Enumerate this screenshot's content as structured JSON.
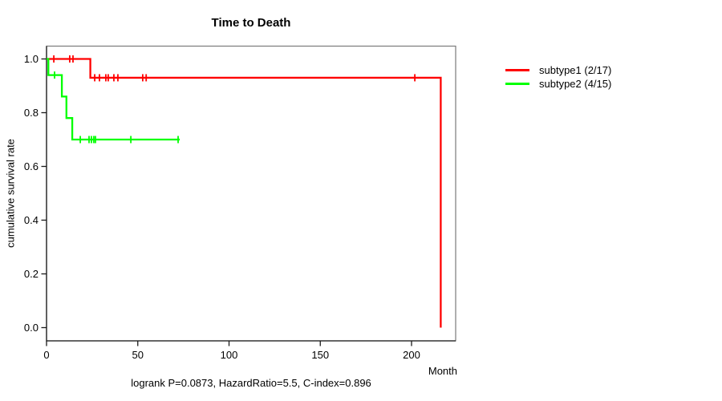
{
  "chart_data": {
    "type": "line",
    "chart_kind": "kaplan_meier_step_survival",
    "title": "Time to Death",
    "xlabel": "Month",
    "ylabel": "cumulative survival rate",
    "footer_annotation": "logrank P=0.0873, HazardRatio=5.5, C-index=0.896",
    "x_ticks": {
      "values": [
        0,
        50,
        100,
        150,
        200
      ],
      "labels": [
        "0",
        "50",
        "100",
        "150",
        "200"
      ]
    },
    "y_ticks": {
      "values": [
        1.0,
        0.8,
        0.6,
        0.4,
        0.2,
        0.0
      ],
      "labels": [
        "1.0",
        "0.8",
        "0.6",
        "0.4",
        "0.2",
        "0.0"
      ]
    },
    "xlim": [
      0,
      224
    ],
    "ylim": [
      0,
      1
    ],
    "grid": false,
    "legend_position": "right-outside",
    "axis_color": "#1a1a1a",
    "box_color": "#7a7a7a",
    "series": [
      {
        "name": "subtype1 (2/17)",
        "color": "#ff0000",
        "steps": [
          [
            0,
            1.0
          ],
          [
            24,
            0.93
          ],
          [
            216,
            0.0
          ]
        ],
        "end_month": 216,
        "censor_marks": [
          [
            4,
            1.0
          ],
          [
            12.7,
            1.0
          ],
          [
            14.5,
            1.0
          ],
          [
            26.4,
            0.93
          ],
          [
            29,
            0.93
          ],
          [
            32.5,
            0.93
          ],
          [
            33.8,
            0.93
          ],
          [
            36.9,
            0.93
          ],
          [
            39.1,
            0.93
          ],
          [
            52.7,
            0.93
          ],
          [
            54.6,
            0.93
          ],
          [
            201.8,
            0.93
          ]
        ]
      },
      {
        "name": "subtype2 (4/15)",
        "color": "#00ff00",
        "steps": [
          [
            0,
            1.0
          ],
          [
            1.0,
            0.94
          ],
          [
            8.4,
            0.86
          ],
          [
            10.9,
            0.78
          ],
          [
            14.1,
            0.7
          ]
        ],
        "end_month": 73,
        "censor_marks": [
          [
            4.4,
            0.94
          ],
          [
            18.5,
            0.7
          ],
          [
            23.3,
            0.7
          ],
          [
            24.6,
            0.7
          ],
          [
            25.9,
            0.7
          ],
          [
            26.8,
            0.7
          ],
          [
            46.2,
            0.7
          ],
          [
            72.1,
            0.7
          ]
        ]
      }
    ]
  }
}
